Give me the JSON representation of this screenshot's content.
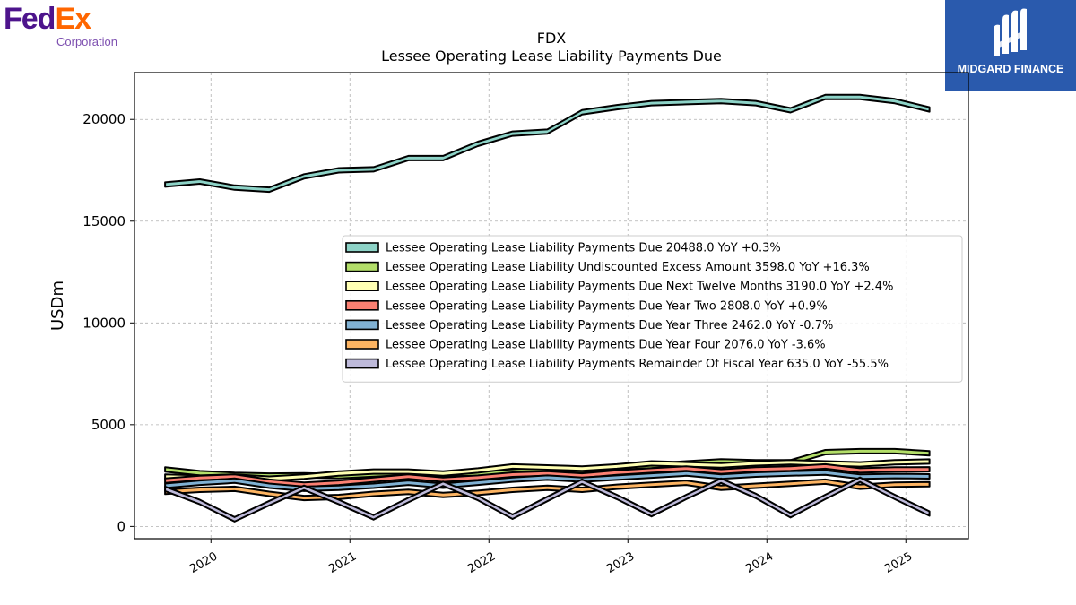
{
  "brand": {
    "left_logo_word1": "Fed",
    "left_logo_word2": "Ex",
    "left_logo_sub": "Corporation",
    "right_logo_text": "MIDGARD FINANCE",
    "colors": {
      "fed_purple": "#4d148c",
      "ex_orange": "#ff6600",
      "sub_purple": "#7d4fb0",
      "midgard_bg": "#2a5aad"
    }
  },
  "chart_data": {
    "type": "area",
    "title": "FDX",
    "subtitle": "Lessee Operating Lease Liability Payments Due",
    "xlabel": "",
    "ylabel": "USDm",
    "xlim": [
      2019.45,
      2025.45
    ],
    "ylim": [
      -600,
      22300
    ],
    "x_ticks": [
      2020,
      2021,
      2022,
      2023,
      2024,
      2025
    ],
    "x_tick_labels": [
      "2020",
      "2021",
      "2022",
      "2023",
      "2024",
      "2025"
    ],
    "y_ticks": [
      0,
      5000,
      10000,
      15000,
      20000
    ],
    "y_tick_labels": [
      "0",
      "5000",
      "10000",
      "15000",
      "20000"
    ],
    "grid": true,
    "legend_position": "center-right",
    "x": [
      2019.67,
      2019.92,
      2020.17,
      2020.42,
      2020.67,
      2020.92,
      2021.17,
      2021.42,
      2021.67,
      2021.92,
      2022.17,
      2022.42,
      2022.67,
      2022.92,
      2023.17,
      2023.42,
      2023.67,
      2023.92,
      2024.17,
      2024.42,
      2024.67,
      2024.92,
      2025.17
    ],
    "series": [
      {
        "name": "Lessee Operating Lease Liability Payments Due",
        "legend": "Lessee Operating Lease Liability Payments Due  20488.0 YoY +0.3%",
        "color": "#8dd3c7",
        "values": [
          16800,
          16950,
          16650,
          16550,
          17200,
          17500,
          17550,
          18100,
          18100,
          18800,
          19300,
          19400,
          20350,
          20600,
          20800,
          20850,
          20900,
          20800,
          20450,
          21100,
          21100,
          20900,
          20488
        ]
      },
      {
        "name": "Lessee Operating Lease Liability Undiscounted Excess Amount",
        "legend": "Lessee Operating Lease Liability Undiscounted Excess Amount  3598.0 YoY +16.3%",
        "color": "#b3de69",
        "values": [
          2800,
          2620,
          2540,
          2500,
          2520,
          2470,
          2560,
          2650,
          2580,
          2600,
          2700,
          2800,
          2760,
          2900,
          2980,
          3100,
          3200,
          3150,
          3150,
          3650,
          3700,
          3700,
          3598
        ]
      },
      {
        "name": "Lessee Operating Lease Liability Payments Due Next Twelve Months",
        "legend": "Lessee Operating Lease Liability Payments Due Next Twelve Months  3190.0 YoY +2.4%",
        "color": "#ffffb3",
        "values": [
          2450,
          2400,
          2450,
          2350,
          2450,
          2600,
          2700,
          2700,
          2600,
          2750,
          2950,
          2900,
          2850,
          2950,
          3100,
          3050,
          3000,
          3100,
          3150,
          3100,
          3050,
          3150,
          3190
        ]
      },
      {
        "name": "Lessee Operating Lease Liability Payments Due Year Two",
        "legend": "Lessee Operating Lease Liability Payments Due Year Two  2808.0 YoY +0.9%",
        "color": "#fb8072",
        "values": [
          2250,
          2380,
          2450,
          2200,
          2050,
          2150,
          2300,
          2450,
          2300,
          2400,
          2550,
          2600,
          2500,
          2650,
          2750,
          2850,
          2700,
          2800,
          2850,
          2950,
          2750,
          2800,
          2808
        ]
      },
      {
        "name": "Lessee Operating Lease Liability Payments Due Year Three",
        "legend": "Lessee Operating Lease Liability Payments Due Year Three  2462.0 YoY -0.7%",
        "color": "#80b1d3",
        "values": [
          2000,
          2150,
          2250,
          2000,
          1850,
          1900,
          2000,
          2150,
          2000,
          2150,
          2300,
          2400,
          2300,
          2400,
          2500,
          2600,
          2450,
          2550,
          2600,
          2650,
          2450,
          2480,
          2462
        ]
      },
      {
        "name": "Lessee Operating Lease Liability Payments Due Year Four",
        "legend": "Lessee Operating Lease Liability Payments Due Year Four  2076.0 YoY -3.6%",
        "color": "#fdb462",
        "values": [
          1700,
          1800,
          1850,
          1600,
          1400,
          1450,
          1600,
          1700,
          1550,
          1650,
          1800,
          1900,
          1800,
          1950,
          2050,
          2150,
          1900,
          2000,
          2100,
          2200,
          1950,
          2050,
          2076
        ]
      },
      {
        "name": "Lessee Operating Lease Liability Payments Remainder Of Fiscal Year",
        "legend": "Lessee Operating Lease Liability Payments Remainder Of Fiscal Year  635.0 YoY -55.5%",
        "color": "#bebada",
        "values": [
          1850,
          1200,
          350,
          1150,
          1900,
          1200,
          450,
          1300,
          2100,
          1400,
          480,
          1350,
          2200,
          1450,
          600,
          1450,
          2250,
          1500,
          550,
          1450,
          2300,
          1450,
          635
        ]
      }
    ]
  }
}
